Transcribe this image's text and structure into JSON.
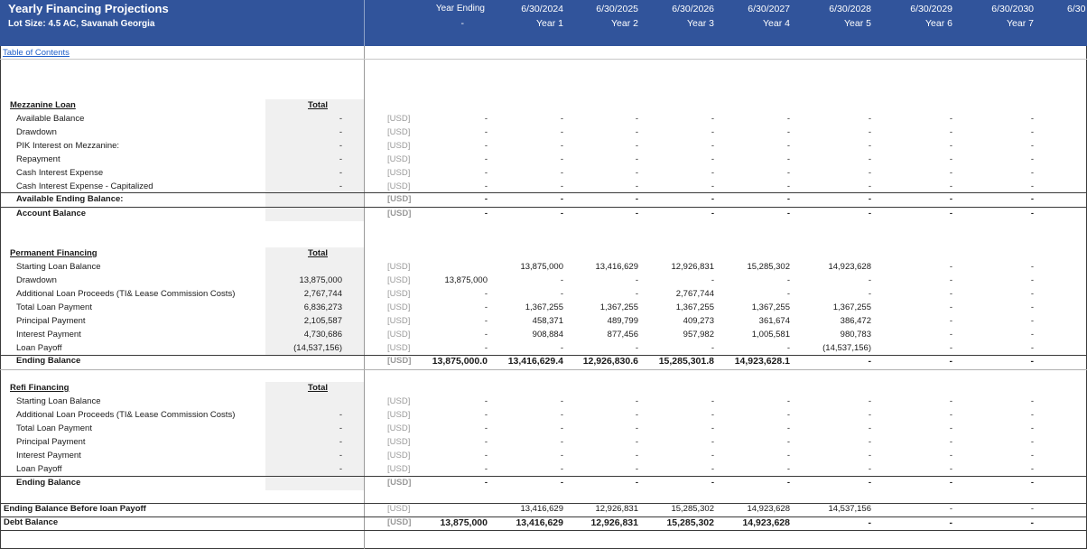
{
  "header": {
    "title": "Yearly Financing Projections",
    "subtitle": "Lot Size: 4.5 AC, Savanah Georgia",
    "columns": [
      {
        "top": "Year Ending",
        "bottom": "-"
      },
      {
        "top": "6/30/2024",
        "bottom": "Year 1"
      },
      {
        "top": "6/30/2025",
        "bottom": "Year 2"
      },
      {
        "top": "6/30/2026",
        "bottom": "Year 3"
      },
      {
        "top": "6/30/2027",
        "bottom": "Year 4"
      },
      {
        "top": "6/30/2028",
        "bottom": "Year 5"
      },
      {
        "top": "6/30/2029",
        "bottom": "Year 6"
      },
      {
        "top": "6/30/2030",
        "bottom": "Year 7"
      },
      {
        "top": "6/30",
        "bottom": ""
      }
    ]
  },
  "toc_link": "Table of Contents",
  "unit_label": "[USD]",
  "mezzanine": {
    "title": "Mezzanine Loan",
    "total_header": "Total",
    "rows": [
      {
        "label": "Available Balance",
        "total": "-",
        "values": [
          "-",
          "-",
          "-",
          "-",
          "-",
          "-",
          "-",
          "-"
        ]
      },
      {
        "label": "Drawdown",
        "total": "-",
        "values": [
          "-",
          "-",
          "-",
          "-",
          "-",
          "-",
          "-",
          "-"
        ]
      },
      {
        "label": "PIK Interest on Mezzanine:",
        "total": "-",
        "values": [
          "-",
          "-",
          "-",
          "-",
          "-",
          "-",
          "-",
          "-"
        ]
      },
      {
        "label": "Repayment",
        "total": "-",
        "values": [
          "-",
          "-",
          "-",
          "-",
          "-",
          "-",
          "-",
          "-"
        ]
      },
      {
        "label": "Cash Interest Expense",
        "total": "-",
        "values": [
          "-",
          "-",
          "-",
          "-",
          "-",
          "-",
          "-",
          "-"
        ]
      },
      {
        "label": "Cash Interest Expense - Capitalized",
        "total": "-",
        "values": [
          "-",
          "-",
          "-",
          "-",
          "-",
          "-",
          "-",
          "-"
        ]
      }
    ],
    "available_ending": {
      "label": "Available Ending Balance:",
      "total": "",
      "values": [
        "-",
        "-",
        "-",
        "-",
        "-",
        "-",
        "-",
        "-"
      ]
    },
    "account_balance": {
      "label": "Account Balance",
      "total": "",
      "values": [
        "-",
        "-",
        "-",
        "-",
        "-",
        "-",
        "-",
        "-"
      ]
    }
  },
  "permanent": {
    "title": "Permanent Financing",
    "total_header": "Total",
    "rows": [
      {
        "label": "Starting Loan Balance",
        "total": "",
        "values": [
          "",
          "13,875,000",
          "13,416,629",
          "12,926,831",
          "15,285,302",
          "14,923,628",
          "-",
          "-"
        ]
      },
      {
        "label": "Drawdown",
        "total": "13,875,000",
        "values": [
          "13,875,000",
          "-",
          "-",
          "-",
          "-",
          "-",
          "-",
          "-"
        ]
      },
      {
        "label": "Additional Loan Proceeds (TI& Lease Commission Costs)",
        "total": "2,767,744",
        "values": [
          "-",
          "-",
          "-",
          "2,767,744",
          "-",
          "-",
          "-",
          "-"
        ]
      },
      {
        "label": "Total Loan Payment",
        "total": "6,836,273",
        "values": [
          "-",
          "1,367,255",
          "1,367,255",
          "1,367,255",
          "1,367,255",
          "1,367,255",
          "-",
          "-"
        ]
      },
      {
        "label": "Principal Payment",
        "total": "2,105,587",
        "values": [
          "-",
          "458,371",
          "489,799",
          "409,273",
          "361,674",
          "386,472",
          "-",
          "-"
        ]
      },
      {
        "label": "Interest Payment",
        "total": "4,730,686",
        "values": [
          "-",
          "908,884",
          "877,456",
          "957,982",
          "1,005,581",
          "980,783",
          "-",
          "-"
        ]
      },
      {
        "label": "Loan Payoff",
        "total": "(14,537,156)",
        "values": [
          "-",
          "-",
          "-",
          "-",
          "-",
          "(14,537,156)",
          "-",
          "-"
        ]
      }
    ],
    "ending": {
      "label": "Ending Balance",
      "values": [
        "13,875,000.0",
        "13,416,629.4",
        "12,926,830.6",
        "15,285,301.8",
        "14,923,628.1",
        "-",
        "-",
        "-"
      ]
    }
  },
  "refi": {
    "title": "Refi Financing",
    "total_header": "Total",
    "rows": [
      {
        "label": "Starting Loan Balance",
        "total": "",
        "values": [
          "-",
          "-",
          "-",
          "-",
          "-",
          "-",
          "-",
          "-"
        ]
      },
      {
        "label": "Additional Loan Proceeds (TI& Lease Commission Costs)",
        "total": "-",
        "values": [
          "-",
          "-",
          "-",
          "-",
          "-",
          "-",
          "-",
          "-"
        ]
      },
      {
        "label": "Total Loan Payment",
        "total": "-",
        "values": [
          "-",
          "-",
          "-",
          "-",
          "-",
          "-",
          "-",
          "-"
        ]
      },
      {
        "label": "Principal Payment",
        "total": "-",
        "values": [
          "-",
          "-",
          "-",
          "-",
          "-",
          "-",
          "-",
          "-"
        ]
      },
      {
        "label": "Interest Payment",
        "total": "-",
        "values": [
          "-",
          "-",
          "-",
          "-",
          "-",
          "-",
          "-",
          "-"
        ]
      },
      {
        "label": "Loan Payoff",
        "total": "-",
        "values": [
          "-",
          "-",
          "-",
          "-",
          "-",
          "-",
          "-",
          "-"
        ]
      }
    ],
    "ending": {
      "label": "Ending Balance",
      "values": [
        "-",
        "-",
        "-",
        "-",
        "-",
        "-",
        "-",
        "-"
      ]
    }
  },
  "summary": {
    "before_payoff": {
      "label": "Ending Balance Before loan Payoff",
      "values": [
        "",
        "13,416,629",
        "12,926,831",
        "15,285,302",
        "14,923,628",
        "14,537,156",
        "-",
        "-"
      ]
    },
    "debt_balance": {
      "label": "Debt Balance",
      "values": [
        "13,875,000",
        "13,416,629",
        "12,926,831",
        "15,285,302",
        "14,923,628",
        "-",
        "-",
        "-"
      ]
    }
  }
}
